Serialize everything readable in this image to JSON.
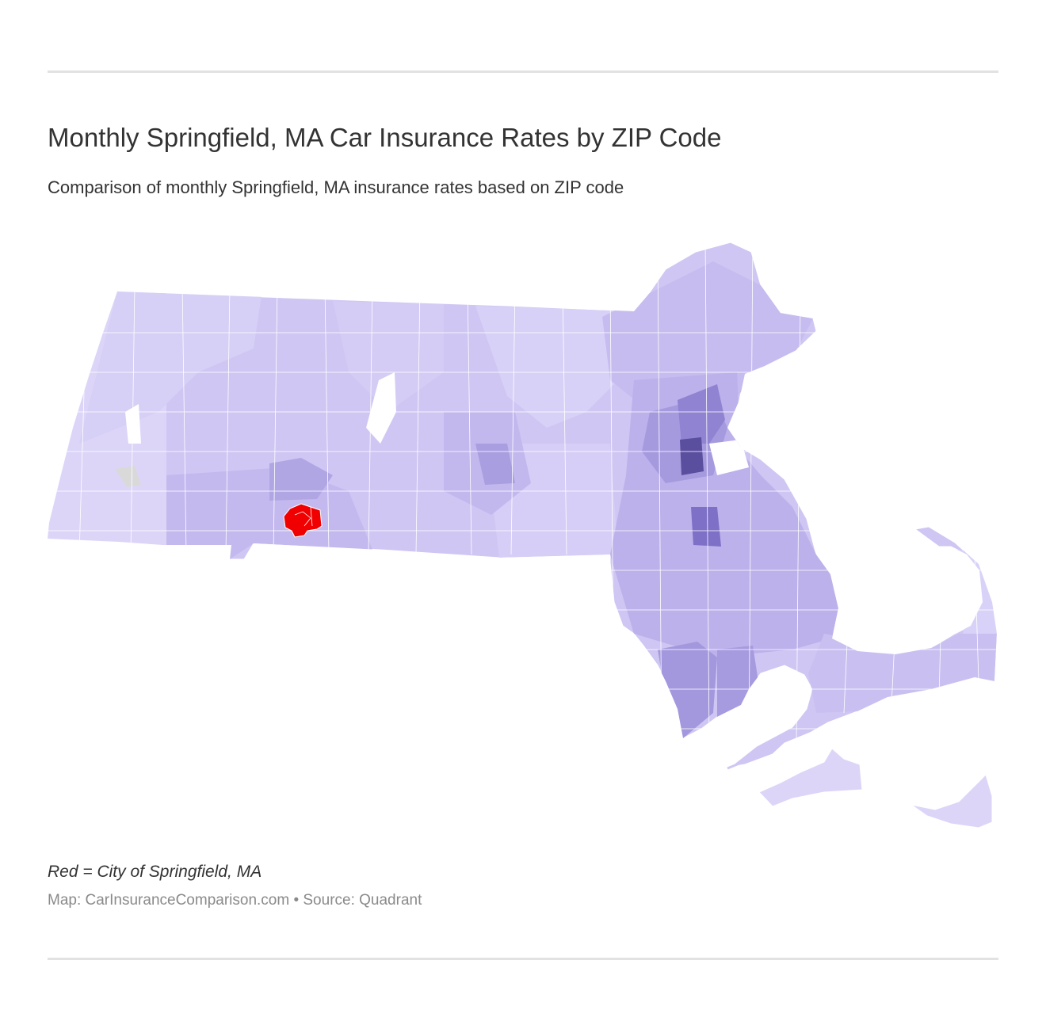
{
  "header": {
    "title": "Monthly Springfield, MA Car Insurance Rates by ZIP Code",
    "subtitle": "Comparison of monthly Springfield, MA insurance rates based on ZIP code"
  },
  "map": {
    "highlight_region": "City of Springfield, MA",
    "colors": {
      "lightest": "#dcd5f8",
      "light": "#cfc6f3",
      "mid": "#bcb1ea",
      "dark": "#9f93da",
      "darker": "#7d70c6",
      "darkest": "#4f438f",
      "highlight": "#f00000",
      "no_data": "#d9d9d9",
      "borders": "#ffffff"
    }
  },
  "footer": {
    "caption": "Red = City of Springfield, MA",
    "credit": "Map: CarInsuranceComparison.com • Source: Quadrant"
  }
}
